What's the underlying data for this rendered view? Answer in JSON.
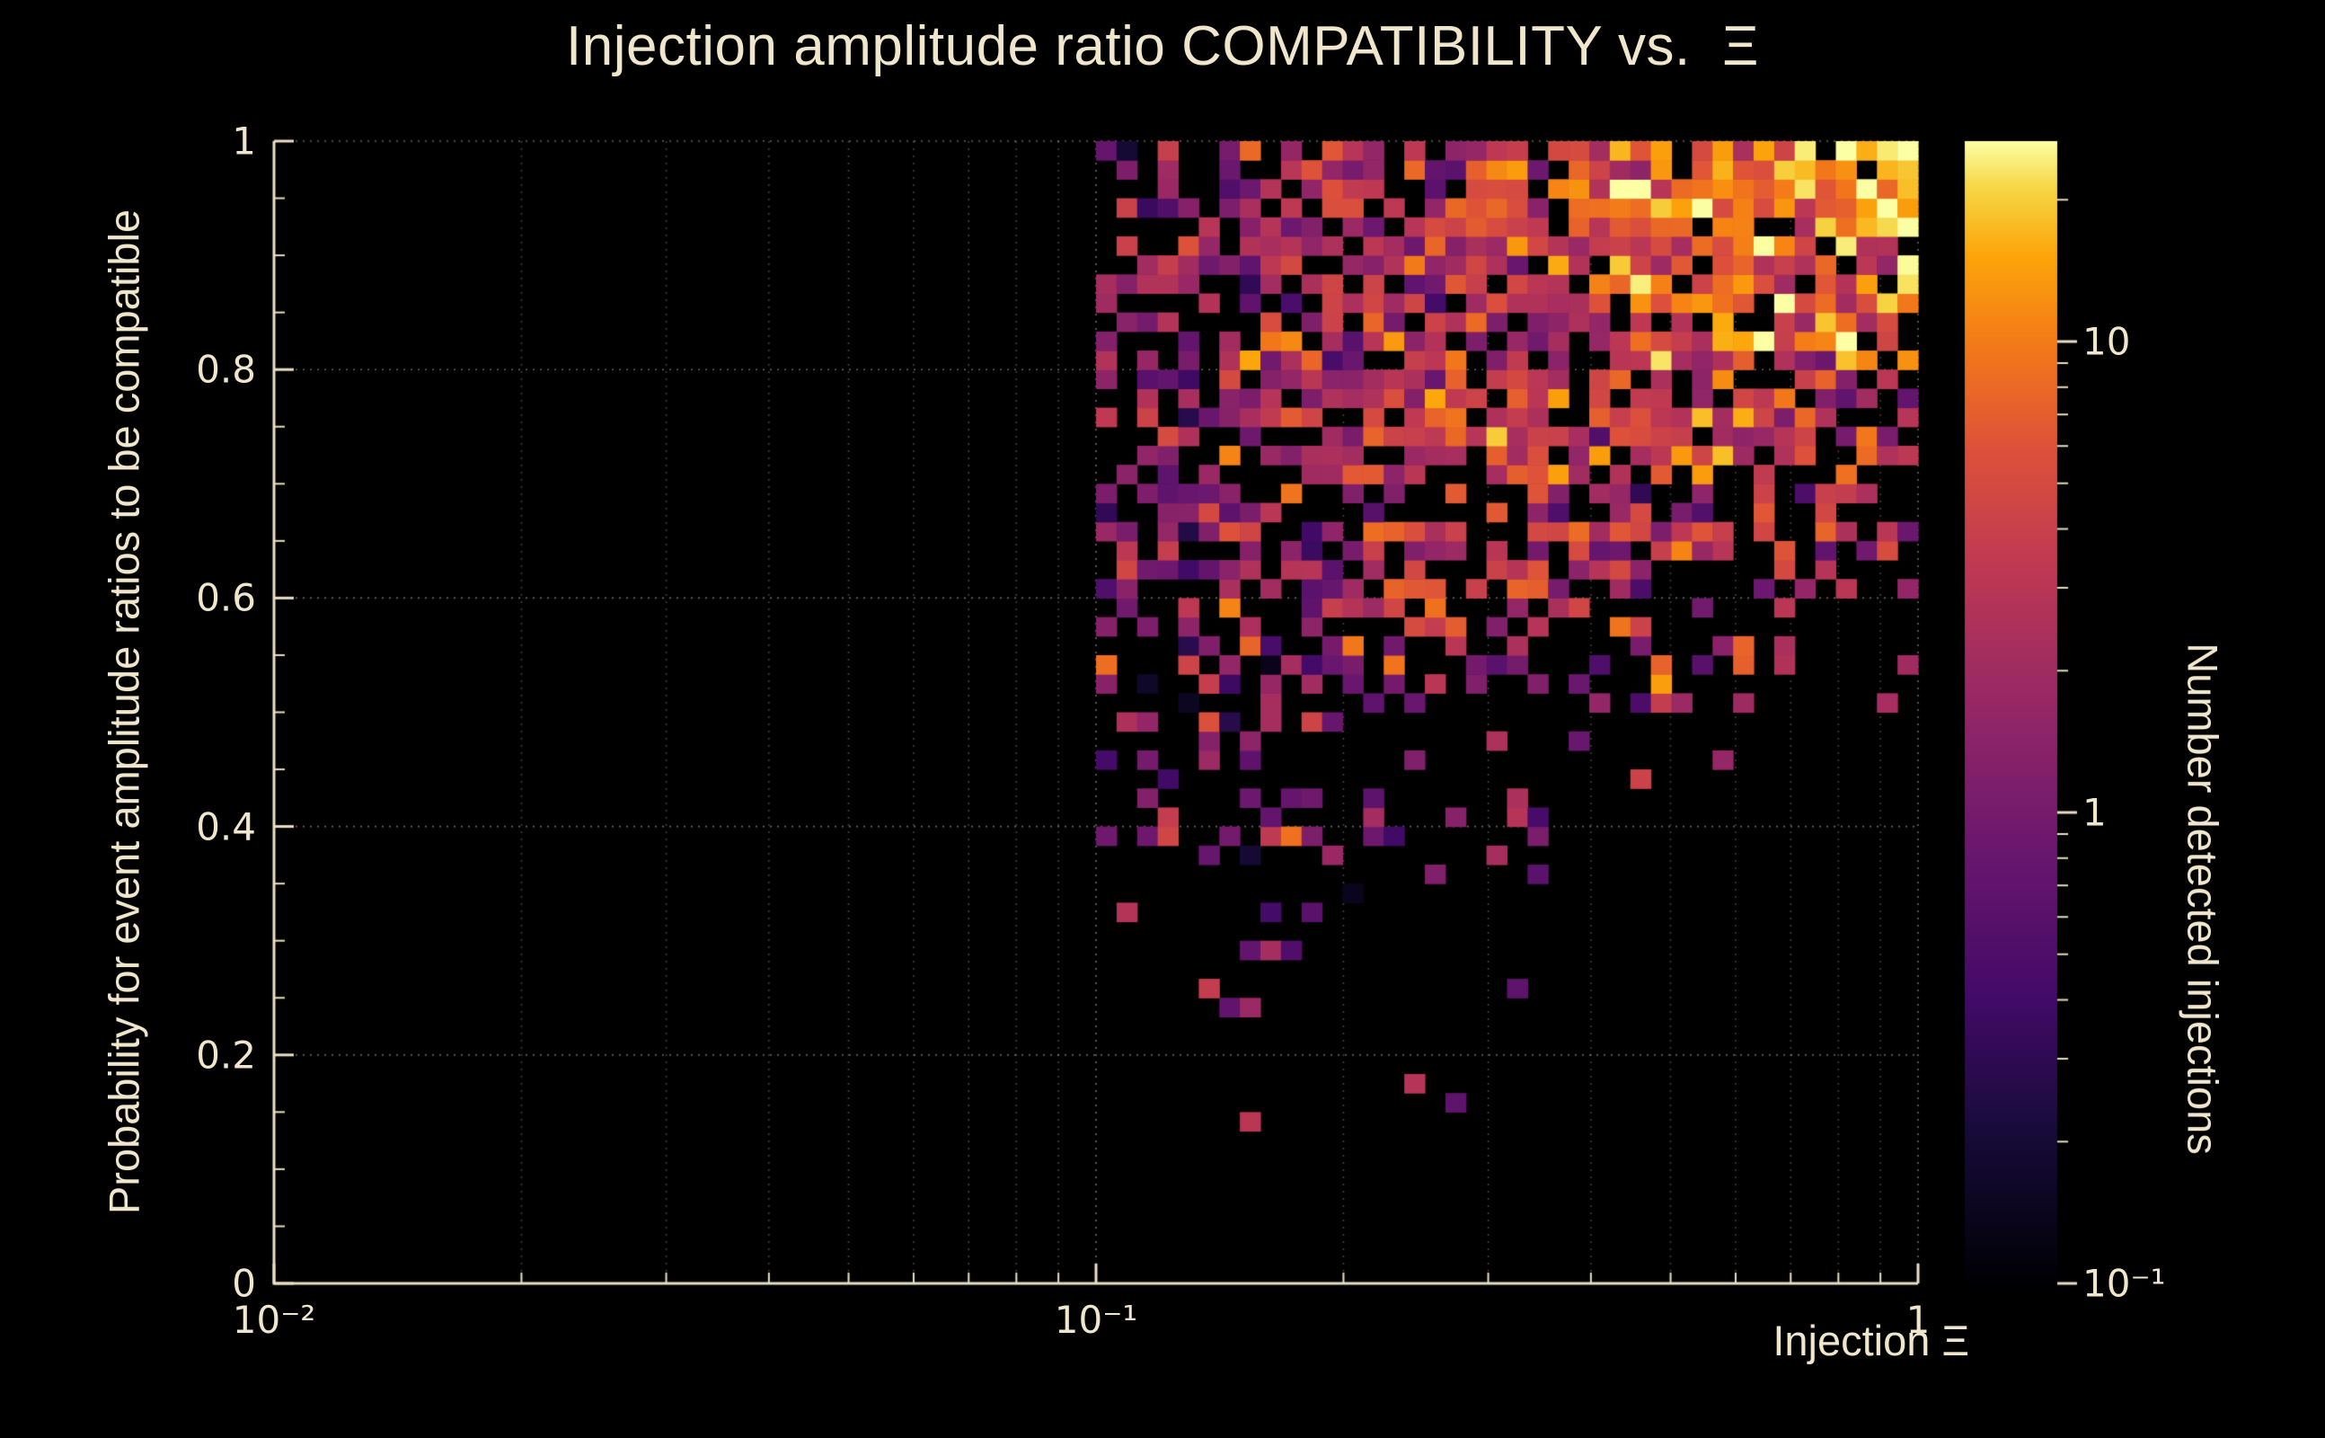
{
  "chart_data": {
    "type": "heatmap",
    "title": "Injection amplitude ratio COMPATIBILITY vs.  Ξ",
    "xlabel": "Injection Ξ",
    "ylabel": "Probability for event amplitude ratios to be compatible",
    "zlabel": "Number detected injections",
    "x_scale": "log",
    "x_range": [
      0.01,
      1
    ],
    "y_range": [
      0,
      1
    ],
    "z_scale": "log",
    "z_range": [
      0.1,
      26.6
    ],
    "data_x_range": [
      0.1,
      1
    ],
    "bins": {
      "nx": 40,
      "ny": 60
    },
    "x_ticks": [
      {
        "value": 0.01,
        "label": "10⁻²"
      },
      {
        "value": 0.1,
        "label": "10⁻¹"
      },
      {
        "value": 1,
        "label": "1"
      }
    ],
    "y_ticks": [
      {
        "value": 0,
        "label": "0"
      },
      {
        "value": 0.2,
        "label": "0.2"
      },
      {
        "value": 0.4,
        "label": "0.4"
      },
      {
        "value": 0.6,
        "label": "0.6"
      },
      {
        "value": 0.8,
        "label": "0.8"
      },
      {
        "value": 1,
        "label": "1"
      }
    ],
    "z_ticks": [
      {
        "value": 0.1,
        "label": "10⁻¹"
      },
      {
        "value": 1,
        "label": "1"
      },
      {
        "value": 10,
        "label": "10"
      }
    ],
    "grid": {
      "show": true,
      "style": "dotted",
      "major_color": "rgba(240,231,205,0.45)",
      "minor_color": "rgba(240,231,205,0.28)"
    },
    "axis_color": "#e9dfc4",
    "background": "#000000",
    "palette": [
      [
        0.0,
        "#000004"
      ],
      [
        0.13,
        "#160b39"
      ],
      [
        0.25,
        "#420a68"
      ],
      [
        0.38,
        "#6a176e"
      ],
      [
        0.5,
        "#932667"
      ],
      [
        0.62,
        "#bc3754"
      ],
      [
        0.73,
        "#dd513a"
      ],
      [
        0.82,
        "#f37819"
      ],
      [
        0.9,
        "#fca50a"
      ],
      [
        0.96,
        "#f6d746"
      ],
      [
        1.0,
        "#fcffa4"
      ]
    ],
    "occupancy_grid": [
      [
        0,
        0,
        0,
        0,
        0,
        0,
        0,
        0,
        0,
        0,
        0
      ],
      [
        0.02,
        0.03,
        0.03,
        0.03,
        0.02,
        0.01,
        0.01,
        0,
        0,
        0,
        0
      ],
      [
        0.04,
        0.05,
        0.05,
        0.04,
        0.03,
        0.02,
        0.01,
        0,
        0,
        0,
        0
      ],
      [
        0.07,
        0.09,
        0.09,
        0.08,
        0.06,
        0.04,
        0.02,
        0.01,
        0,
        0,
        0
      ],
      [
        0.15,
        0.2,
        0.22,
        0.2,
        0.16,
        0.12,
        0.08,
        0.04,
        0.01,
        0,
        0
      ],
      [
        0.25,
        0.32,
        0.36,
        0.34,
        0.3,
        0.26,
        0.22,
        0.14,
        0.06,
        0.02,
        0
      ],
      [
        0.38,
        0.48,
        0.55,
        0.57,
        0.55,
        0.52,
        0.48,
        0.42,
        0.3,
        0.16,
        0.06
      ],
      [
        0.42,
        0.58,
        0.65,
        0.7,
        0.72,
        0.72,
        0.7,
        0.65,
        0.58,
        0.48,
        0.34
      ],
      [
        0.42,
        0.56,
        0.64,
        0.7,
        0.74,
        0.76,
        0.76,
        0.74,
        0.72,
        0.68,
        0.6
      ],
      [
        0.38,
        0.52,
        0.62,
        0.7,
        0.74,
        0.8,
        0.84,
        0.86,
        0.88,
        0.9,
        0.92
      ],
      [
        0.34,
        0.48,
        0.58,
        0.66,
        0.72,
        0.8,
        0.86,
        0.92,
        0.96,
        0.98,
        0.99
      ]
    ],
    "mean_log10_grid": [
      [
        0,
        0,
        0,
        0,
        0,
        0,
        0,
        0,
        0,
        0,
        0
      ],
      [
        -0.1,
        -0.1,
        -0.05,
        0,
        0,
        0,
        0,
        0,
        0,
        0,
        0
      ],
      [
        -0.1,
        -0.05,
        0,
        0,
        0.05,
        0.05,
        0,
        0,
        0,
        0,
        0
      ],
      [
        -0.05,
        0,
        0.05,
        0.05,
        0.1,
        0.1,
        0.05,
        0,
        0,
        0,
        0
      ],
      [
        0,
        0.05,
        0.1,
        0.1,
        0.15,
        0.15,
        0.1,
        0.05,
        0,
        0,
        0
      ],
      [
        0.05,
        0.1,
        0.15,
        0.2,
        0.25,
        0.25,
        0.25,
        0.2,
        0.1,
        0.05,
        0
      ],
      [
        0.1,
        0.15,
        0.25,
        0.3,
        0.35,
        0.4,
        0.4,
        0.35,
        0.3,
        0.2,
        0.1
      ],
      [
        0.1,
        0.2,
        0.3,
        0.35,
        0.45,
        0.5,
        0.5,
        0.5,
        0.45,
        0.35,
        0.3
      ],
      [
        0.15,
        0.25,
        0.35,
        0.4,
        0.5,
        0.55,
        0.6,
        0.6,
        0.6,
        0.55,
        0.5
      ],
      [
        0.15,
        0.25,
        0.35,
        0.45,
        0.5,
        0.6,
        0.65,
        0.75,
        0.85,
        0.9,
        0.95
      ],
      [
        0.15,
        0.3,
        0.4,
        0.5,
        0.55,
        0.65,
        0.8,
        0.95,
        1.1,
        1.3,
        1.45
      ]
    ],
    "value_sigma_log10": 0.35,
    "seed": 1337
  }
}
